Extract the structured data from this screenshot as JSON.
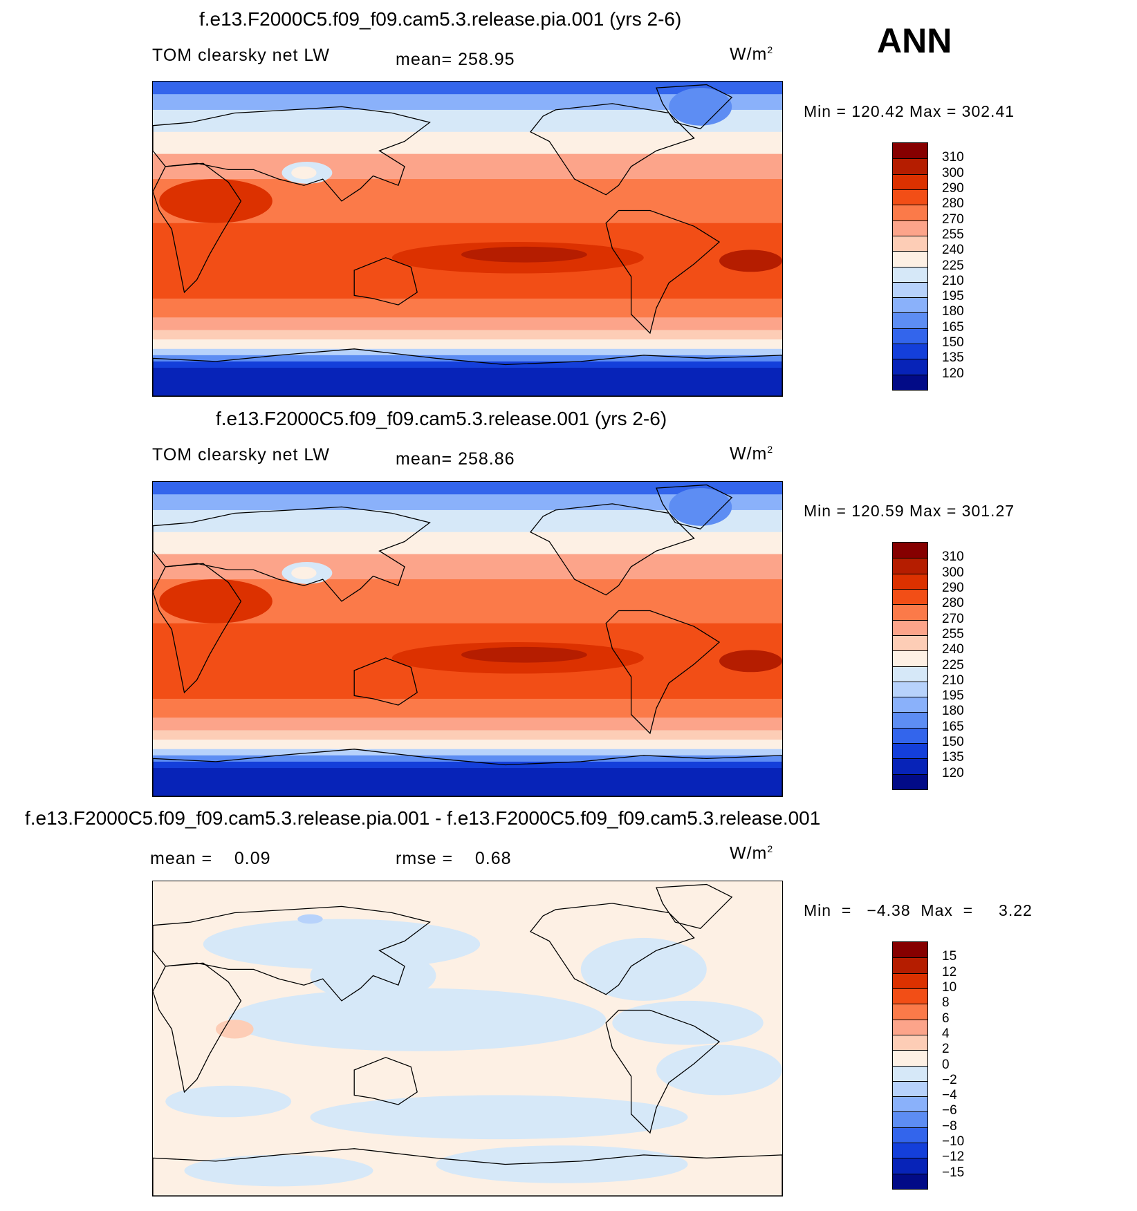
{
  "season": "ANN",
  "units": "W/m²",
  "panels": [
    {
      "id": "pia",
      "title": "f.e13.F2000C5.f09_f09.cam5.3.release.pia.001 (yrs 2-6)",
      "left_label": "TOM clearsky net LW",
      "center_label": "mean= 258.95",
      "minmax": "Min  =  120.42  Max  =  302.41",
      "colorbar_levels": [
        "310",
        "300",
        "290",
        "280",
        "270",
        "255",
        "240",
        "225",
        "210",
        "195",
        "180",
        "165",
        "150",
        "135",
        "120"
      ],
      "colors": [
        "#860000",
        "#b51d00",
        "#dc3100",
        "#f24e16",
        "#fb7a49",
        "#fca48a",
        "#fdcdb6",
        "#fdf0e4",
        "#d6e8f8",
        "#b7d2fb",
        "#8ab1fa",
        "#5d8df3",
        "#3365ec",
        "#143fda",
        "#0723b8",
        "#020b87"
      ],
      "zone": "ctrl"
    },
    {
      "id": "control",
      "title": "f.e13.F2000C5.f09_f09.cam5.3.release.001 (yrs 2-6)",
      "left_label": "TOM clearsky net LW",
      "center_label": "mean= 258.86",
      "minmax": "Min  =  120.59  Max  =  301.27",
      "colorbar_levels": [
        "310",
        "300",
        "290",
        "280",
        "270",
        "255",
        "240",
        "225",
        "210",
        "195",
        "180",
        "165",
        "150",
        "135",
        "120"
      ],
      "colors": [
        "#860000",
        "#b51d00",
        "#dc3100",
        "#f24e16",
        "#fb7a49",
        "#fca48a",
        "#fdcdb6",
        "#fdf0e4",
        "#d6e8f8",
        "#b7d2fb",
        "#8ab1fa",
        "#5d8df3",
        "#3365ec",
        "#143fda",
        "#0723b8",
        "#020b87"
      ],
      "zone": "ctrl"
    },
    {
      "id": "difference",
      "title": "f.e13.F2000C5.f09_f09.cam5.3.release.pia.001 - f.e13.F2000C5.f09_f09.cam5.3.release.001",
      "left_label": "mean =    0.09",
      "center_label": "rmse =    0.68",
      "minmax": "Min  =   −4.38  Max  =     3.22",
      "colorbar_levels": [
        "15",
        "12",
        "10",
        "8",
        "6",
        "4",
        "2",
        "0",
        "−2",
        "−4",
        "−6",
        "−8",
        "−10",
        "−12",
        "−15"
      ],
      "colors": [
        "#860000",
        "#b51d00",
        "#dc3100",
        "#f24e16",
        "#fb7a49",
        "#fca48a",
        "#fdcdb6",
        "#fdf0e4",
        "#d6e8f8",
        "#b7d2fb",
        "#8ab1fa",
        "#5d8df3",
        "#3365ec",
        "#143fda",
        "#0723b8",
        "#020b87"
      ],
      "zone": "diff"
    }
  ]
}
